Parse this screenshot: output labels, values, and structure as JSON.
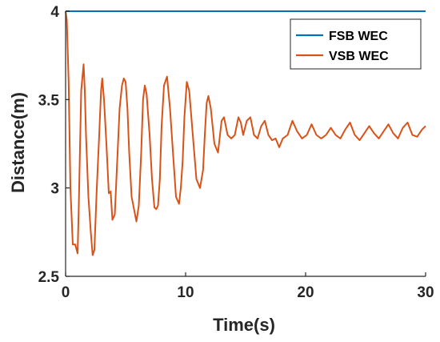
{
  "chart_data": {
    "type": "line",
    "title": "",
    "xlabel": "Time(s)",
    "ylabel": "Distance(m)",
    "xlim": [
      0,
      30
    ],
    "ylim": [
      2.5,
      4
    ],
    "xticks": [
      "0",
      "10",
      "20",
      "30"
    ],
    "yticks": [
      "2.5",
      "3",
      "3.5",
      "4"
    ],
    "grid": false,
    "legend_position": "top-right",
    "series": [
      {
        "name": "FSB WEC",
        "color": "#0072BD",
        "x": [
          0,
          30
        ],
        "y": [
          4.0,
          4.0
        ]
      },
      {
        "name": "VSB WEC",
        "color": "#D95319",
        "x": [
          0,
          0.1,
          0.25,
          0.4,
          0.6,
          0.8,
          1.0,
          1.1,
          1.3,
          1.5,
          1.6,
          1.7,
          1.9,
          2.1,
          2.25,
          2.4,
          2.6,
          2.8,
          2.95,
          3.05,
          3.2,
          3.4,
          3.6,
          3.75,
          3.9,
          4.1,
          4.3,
          4.5,
          4.7,
          4.85,
          5.0,
          5.15,
          5.3,
          5.5,
          5.7,
          5.9,
          6.1,
          6.3,
          6.45,
          6.6,
          6.75,
          7.0,
          7.2,
          7.4,
          7.55,
          7.7,
          7.85,
          8.0,
          8.2,
          8.45,
          8.7,
          8.95,
          9.2,
          9.45,
          9.6,
          9.75,
          9.9,
          10.1,
          10.3,
          10.6,
          10.9,
          11.2,
          11.45,
          11.6,
          11.75,
          11.9,
          12.1,
          12.4,
          12.7,
          13.0,
          13.2,
          13.5,
          13.8,
          14.1,
          14.4,
          14.6,
          14.8,
          15.1,
          15.4,
          15.7,
          16.0,
          16.3,
          16.6,
          16.9,
          17.2,
          17.5,
          17.8,
          18.1,
          18.5,
          18.9,
          19.3,
          19.7,
          20.1,
          20.5,
          20.9,
          21.3,
          21.7,
          22.1,
          22.5,
          22.9,
          23.3,
          23.7,
          24.1,
          24.5,
          24.9,
          25.3,
          25.7,
          26.1,
          26.5,
          26.9,
          27.3,
          27.7,
          28.1,
          28.5,
          28.9,
          29.3,
          29.7,
          30.0
        ],
        "y": [
          4.0,
          3.95,
          3.6,
          3.0,
          2.68,
          2.68,
          2.63,
          2.9,
          3.55,
          3.7,
          3.55,
          3.3,
          2.95,
          2.75,
          2.62,
          2.65,
          3.0,
          3.3,
          3.55,
          3.62,
          3.5,
          3.25,
          2.97,
          2.98,
          2.82,
          2.85,
          3.15,
          3.45,
          3.58,
          3.62,
          3.6,
          3.45,
          3.2,
          2.95,
          2.88,
          2.81,
          2.9,
          3.2,
          3.5,
          3.58,
          3.53,
          3.3,
          3.05,
          2.89,
          2.88,
          2.9,
          3.05,
          3.35,
          3.58,
          3.63,
          3.45,
          3.2,
          2.95,
          2.91,
          3.0,
          3.15,
          3.4,
          3.6,
          3.55,
          3.3,
          3.05,
          3.0,
          3.1,
          3.3,
          3.48,
          3.52,
          3.45,
          3.25,
          3.2,
          3.38,
          3.4,
          3.3,
          3.28,
          3.3,
          3.4,
          3.37,
          3.3,
          3.38,
          3.4,
          3.3,
          3.28,
          3.35,
          3.38,
          3.3,
          3.27,
          3.28,
          3.23,
          3.28,
          3.3,
          3.38,
          3.32,
          3.28,
          3.3,
          3.36,
          3.3,
          3.28,
          3.3,
          3.34,
          3.3,
          3.28,
          3.33,
          3.37,
          3.3,
          3.27,
          3.31,
          3.35,
          3.31,
          3.28,
          3.32,
          3.36,
          3.31,
          3.28,
          3.34,
          3.37,
          3.3,
          3.29,
          3.33,
          3.35
        ]
      }
    ]
  }
}
